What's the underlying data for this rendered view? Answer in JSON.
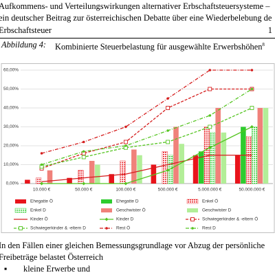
{
  "header": {
    "lines": [
      "Aufkommens- und Verteilungswirkungen alternativer Erbschaftsteuersysteme –",
      "ein deutscher Beitrag zur österreichischen Debatte über eine Wiederbelebung de",
      "Erbschaftsteuer"
    ],
    "page": "1"
  },
  "caption": {
    "label": "Abbildung 4:",
    "title": "Kombinierte Steuerbelastung für ausgewählte Erwerbshöhen",
    "footnote": "8"
  },
  "chart_data": {
    "type": "bar",
    "categories": [
      "10.000 €",
      "50.000 €",
      "100.000 €",
      "500.000 €",
      "5.000.000 €",
      "50.000.000 €"
    ],
    "ylim": [
      0,
      60
    ],
    "yticks": [
      {
        "value": 0,
        "label": "0,00%"
      },
      {
        "value": 10,
        "label": "10,00%"
      },
      {
        "value": 20,
        "label": "20,00%"
      },
      {
        "value": 30,
        "label": "30,00%"
      },
      {
        "value": 40,
        "label": "40,00%"
      },
      {
        "value": 50,
        "label": "50,00%"
      },
      {
        "value": 60,
        "label": "60,00%"
      }
    ],
    "grid": true,
    "series": [
      {
        "name": "Ehegatte Ö",
        "kind": "bar",
        "color": "#e8141b",
        "hatched": false,
        "values": [
          2,
          3,
          5,
          10,
          15,
          15
        ]
      },
      {
        "name": "Ehegatte D",
        "kind": "bar",
        "color": "#2ecc2e",
        "hatched": false,
        "values": [
          0,
          0,
          0,
          0,
          17,
          30
        ]
      },
      {
        "name": "Enkel Ö",
        "kind": "bar",
        "color": "#e8141b",
        "hatched": true,
        "values": [
          3,
          7,
          12,
          17,
          30,
          25
        ]
      },
      {
        "name": "Enkel D",
        "kind": "bar",
        "color": "#2ecc2e",
        "hatched": true,
        "values": [
          0,
          0,
          0,
          15,
          27,
          30
        ]
      },
      {
        "name": "Geschwister Ö",
        "kind": "bar",
        "color": "#f0817a",
        "hatched": false,
        "values": [
          7,
          12,
          18,
          30,
          40,
          40
        ]
      },
      {
        "name": "Geschwister D",
        "kind": "bar",
        "color": "#b2ee98",
        "hatched": false,
        "values": [
          0,
          10,
          15,
          21,
          27,
          40
        ]
      },
      {
        "name": "Kinder Ö",
        "kind": "line",
        "color": "#d51d1d",
        "dash": "solid",
        "marker": "none",
        "values": [
          1,
          3,
          5,
          10,
          15,
          15
        ]
      },
      {
        "name": "Kinder D",
        "kind": "line",
        "color": "#55c521",
        "dash": "solid",
        "marker": "diamond",
        "values": [
          0,
          0,
          0,
          7,
          19,
          30
        ]
      },
      {
        "name": "Schwiegerkinder & -eltern Ö",
        "kind": "line",
        "color": "#d51d1d",
        "dash": "dashed",
        "marker": "square",
        "values": [
          8,
          16,
          22,
          40,
          50,
          50
        ]
      },
      {
        "name": "Schwiegerkinder & -eltern D",
        "kind": "line",
        "color": "#55c521",
        "dash": "dashed",
        "marker": "square",
        "values": [
          9,
          14,
          19,
          22,
          30,
          40
        ]
      },
      {
        "name": "Rest Ö",
        "kind": "line",
        "color": "#d51d1d",
        "dash": "dashdot",
        "marker": "dot",
        "values": [
          16,
          22,
          30,
          45,
          60,
          60
        ]
      },
      {
        "name": "Rest D",
        "kind": "line",
        "color": "#55c521",
        "dash": "dashdot",
        "marker": "dot",
        "values": [
          10,
          17,
          20,
          28,
          36,
          50
        ]
      }
    ]
  },
  "body": {
    "lines": [
      "In den Fällen einer gleichen Bemessungsgrundlage vor Abzug der persönliche",
      "Freibeträge belastet Österreich"
    ],
    "bullets": [
      "kleine Erwerbe und"
    ]
  }
}
